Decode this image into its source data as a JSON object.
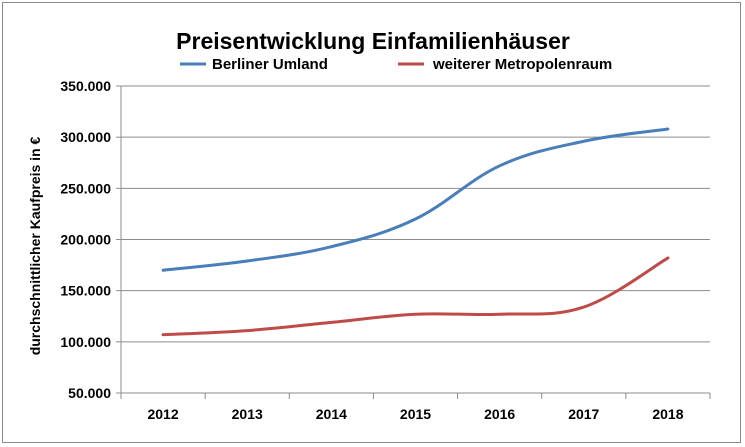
{
  "chart_data": {
    "type": "line",
    "title": "Preisentwicklung Einfamilienhäuser",
    "xlabel": "",
    "ylabel": "durchschnittlicher Kaufpreis in €",
    "categories": [
      "2012",
      "2013",
      "2014",
      "2015",
      "2016",
      "2017",
      "2018"
    ],
    "ylim": [
      50000,
      350000
    ],
    "yticks": [
      50000,
      100000,
      150000,
      200000,
      250000,
      300000,
      350000
    ],
    "ytick_labels": [
      "50.000",
      "100.000",
      "150.000",
      "200.000",
      "250.000",
      "300.000",
      "350.000"
    ],
    "grid": true,
    "legend_position": "top",
    "series": [
      {
        "name": "Berliner Umland",
        "color": "#4a7ebb",
        "values": [
          170000,
          179000,
          193000,
          220000,
          272000,
          296000,
          308000
        ]
      },
      {
        "name": "weiterer Metropolenraum",
        "color": "#be4b48",
        "values": [
          107000,
          111000,
          119000,
          127000,
          127000,
          134000,
          182000
        ]
      }
    ]
  }
}
